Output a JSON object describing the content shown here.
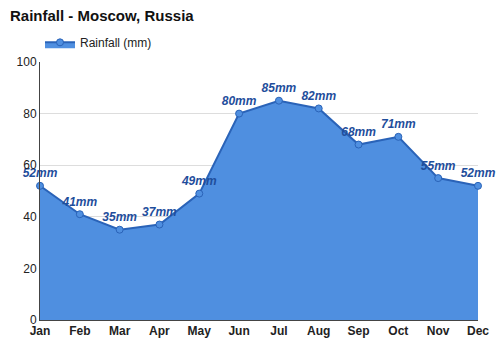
{
  "chart_data": {
    "type": "line",
    "title": "Rainfall - Moscow, Russia",
    "categories": [
      "Jan",
      "Feb",
      "Mar",
      "Apr",
      "May",
      "Jun",
      "Jul",
      "Aug",
      "Sep",
      "Oct",
      "Nov",
      "Dec"
    ],
    "series": [
      {
        "name": "Rainfall (mm)",
        "color": "#4f8fe0",
        "values": [
          52,
          41,
          35,
          37,
          49,
          80,
          85,
          82,
          68,
          71,
          55,
          52
        ],
        "value_labels": [
          "52mm",
          "41mm",
          "35mm",
          "37mm",
          "49mm",
          "80mm",
          "85mm",
          "82mm",
          "68mm",
          "71mm",
          "55mm",
          "52mm"
        ]
      }
    ],
    "ylim": [
      0,
      100
    ],
    "yticks": [
      0,
      20,
      40,
      60,
      80,
      100
    ],
    "grid": true,
    "legend": "upper left",
    "data_labels": true,
    "marker": "circle"
  }
}
